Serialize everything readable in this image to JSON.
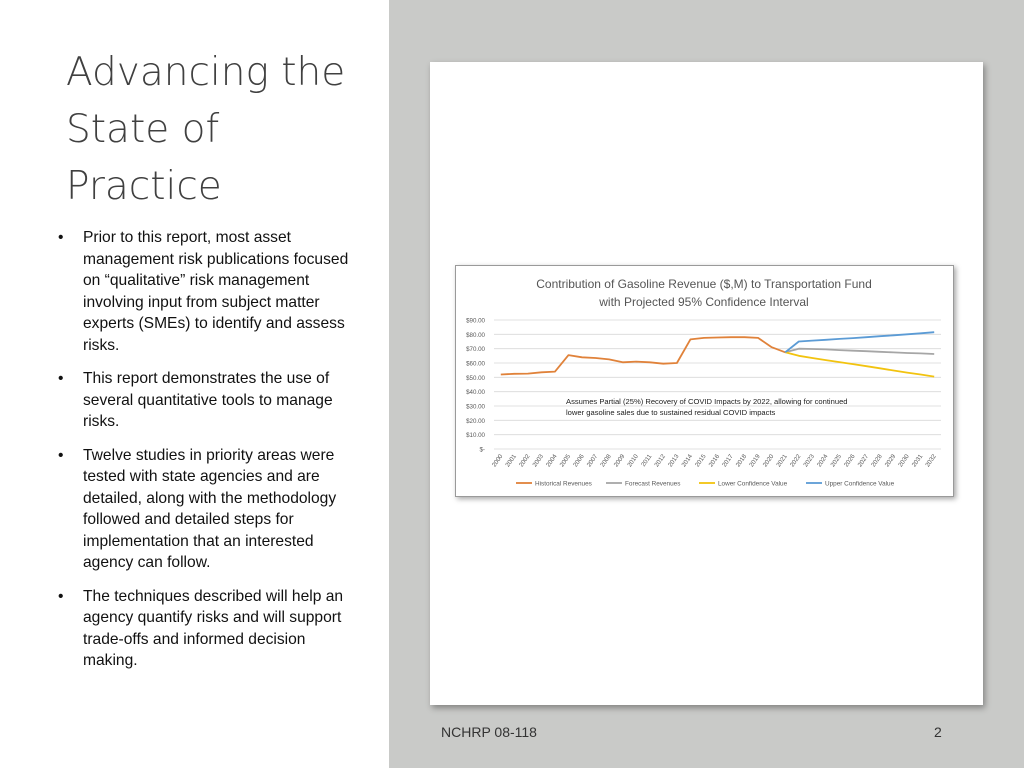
{
  "slide": {
    "title": "Advancing the State of Practice",
    "bullets": [
      "Prior to this report, most asset management risk publications focused on “qualitative” risk management involving input from subject matter experts (SMEs) to identify and assess risks.",
      "This report demonstrates the use of several quantitative tools to manage risks.",
      "Twelve studies in priority areas were tested with state agencies and are detailed, along with the methodology followed and detailed steps for implementation that an interested agency can follow.",
      "The techniques described will help an agency quantify risks and will support trade-offs and informed decision making."
    ],
    "bullet_glyph": "•",
    "footer": "NCHRP 08-118",
    "page_number": "2"
  },
  "chart_data": {
    "type": "line",
    "title": "Contribution of Gasoline Revenue ($,M) to Transportation Fund",
    "subtitle": "with Projected 95% Confidence Interval",
    "annotation": [
      "Assumes Partial (25%) Recovery of COVID Impacts by 2022, allowing for continued",
      "lower gasoline sales due to sustained residual COVID impacts"
    ],
    "x": [
      "2000",
      "2001",
      "2002",
      "2003",
      "2004",
      "2005",
      "2006",
      "2007",
      "2008",
      "2009",
      "2010",
      "2011",
      "2012",
      "2013",
      "2014",
      "2015",
      "2016",
      "2017",
      "2018",
      "2019",
      "2020",
      "2021",
      "2022",
      "2023",
      "2024",
      "2025",
      "2026",
      "2027",
      "2028",
      "2029",
      "2030",
      "2031",
      "2032"
    ],
    "y_ticks": [
      "$-",
      "$10.00",
      "$20.00",
      "$30.00",
      "$40.00",
      "$50.00",
      "$60.00",
      "$70.00",
      "$80.00",
      "$90.00"
    ],
    "ylim": [
      0,
      90
    ],
    "grid": true,
    "legend_position": "bottom",
    "series": [
      {
        "name": "Historical Revenues",
        "color": "#e0823a",
        "values": [
          52,
          52.5,
          52.6,
          53.5,
          54,
          65.5,
          64,
          63.5,
          62.5,
          60.5,
          61,
          60.5,
          59.5,
          60,
          76.5,
          77.5,
          77.8,
          78,
          78,
          77.5,
          71,
          67.5,
          null,
          null,
          null,
          null,
          null,
          null,
          null,
          null,
          null,
          null,
          null
        ]
      },
      {
        "name": "Forecast Revenues",
        "color": "#a6a6a6",
        "values": [
          null,
          null,
          null,
          null,
          null,
          null,
          null,
          null,
          null,
          null,
          null,
          null,
          null,
          null,
          null,
          null,
          null,
          null,
          null,
          null,
          null,
          67.5,
          70,
          69.8,
          69.5,
          69,
          68.6,
          68.2,
          67.8,
          67.4,
          67,
          66.7,
          66.3
        ]
      },
      {
        "name": "Lower Confidence Value",
        "color": "#f2c30f",
        "values": [
          null,
          null,
          null,
          null,
          null,
          null,
          null,
          null,
          null,
          null,
          null,
          null,
          null,
          null,
          null,
          null,
          null,
          null,
          null,
          null,
          null,
          67.5,
          65,
          63.5,
          62,
          60.6,
          59.2,
          57.8,
          56.3,
          54.8,
          53.3,
          52,
          50.5
        ]
      },
      {
        "name": "Upper Confidence Value",
        "color": "#5b9bd5",
        "values": [
          null,
          null,
          null,
          null,
          null,
          null,
          null,
          null,
          null,
          null,
          null,
          null,
          null,
          null,
          null,
          null,
          null,
          null,
          null,
          null,
          null,
          67.5,
          75,
          75.6,
          76.2,
          76.8,
          77.4,
          78,
          78.7,
          79.3,
          80,
          80.7,
          81.5
        ]
      }
    ]
  }
}
